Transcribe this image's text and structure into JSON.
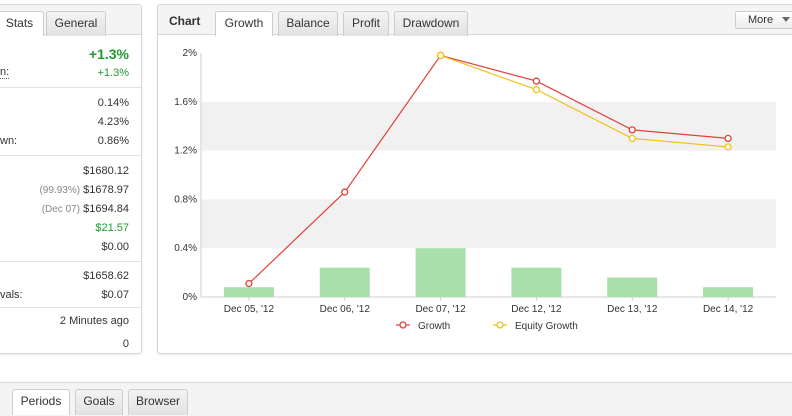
{
  "stats_panel": {
    "tabs": [
      {
        "label": "Stats",
        "active": true
      },
      {
        "label": "General",
        "active": false
      }
    ],
    "rows": [
      {
        "label": "",
        "value": "+1.3%",
        "value_color": "#1d9b2d"
      },
      {
        "label": "n:",
        "value": "+1.3%",
        "value_color": "#1d9b2d"
      },
      {
        "label": "",
        "value": "0.14%"
      },
      {
        "label": "",
        "value": "4.23%"
      },
      {
        "label": "wn:",
        "value": "0.86%"
      },
      {
        "label": "",
        "value": "$1680.12"
      },
      {
        "label": "",
        "prefix": "(99.93%)",
        "value": "$1678.97"
      },
      {
        "label": "",
        "prefix": "(Dec 07)",
        "value": "$1694.84"
      },
      {
        "label": "",
        "value": "$21.57",
        "value_color": "#1d9b2d"
      },
      {
        "label": "",
        "value": "$0.00"
      },
      {
        "label": "",
        "value": "$1658.62"
      },
      {
        "label": "vals:",
        "value": "$0.07"
      },
      {
        "label": "",
        "value": "2 Minutes ago"
      },
      {
        "label": "",
        "value": "0"
      }
    ]
  },
  "chart_panel": {
    "title": "Chart",
    "tabs": [
      {
        "label": "Growth",
        "active": true
      },
      {
        "label": "Balance",
        "active": false
      },
      {
        "label": "Profit",
        "active": false
      },
      {
        "label": "Drawdown",
        "active": false
      }
    ],
    "more_label": "More"
  },
  "chart_data": {
    "type": "line",
    "categories": [
      "Dec 05, '12",
      "Dec 06, '12",
      "Dec 07, '12",
      "Dec 12, '12",
      "Dec 13, '12",
      "Dec 14, '12"
    ],
    "series": [
      {
        "name": "Growth",
        "type": "line",
        "color": "#e0403a",
        "values": [
          0.11,
          0.86,
          1.98,
          1.77,
          1.37,
          1.3
        ]
      },
      {
        "name": "Equity Growth",
        "type": "line",
        "color": "#f2c019",
        "values": [
          null,
          null,
          1.98,
          1.7,
          1.3,
          1.23
        ]
      },
      {
        "type": "bar",
        "color": "#a9dfa9",
        "values": [
          0.08,
          0.24,
          0.4,
          0.24,
          0.16,
          0.08
        ]
      }
    ],
    "yticks": [
      "0%",
      "0.4%",
      "0.8%",
      "1.2%",
      "1.6%",
      "2%"
    ],
    "ylim": [
      0,
      2
    ],
    "grid": true,
    "legend_position": "bottom"
  },
  "bottom_tabs": [
    {
      "label": "Periods",
      "active": true
    },
    {
      "label": "Goals",
      "active": false
    },
    {
      "label": "Browser",
      "active": false
    }
  ]
}
